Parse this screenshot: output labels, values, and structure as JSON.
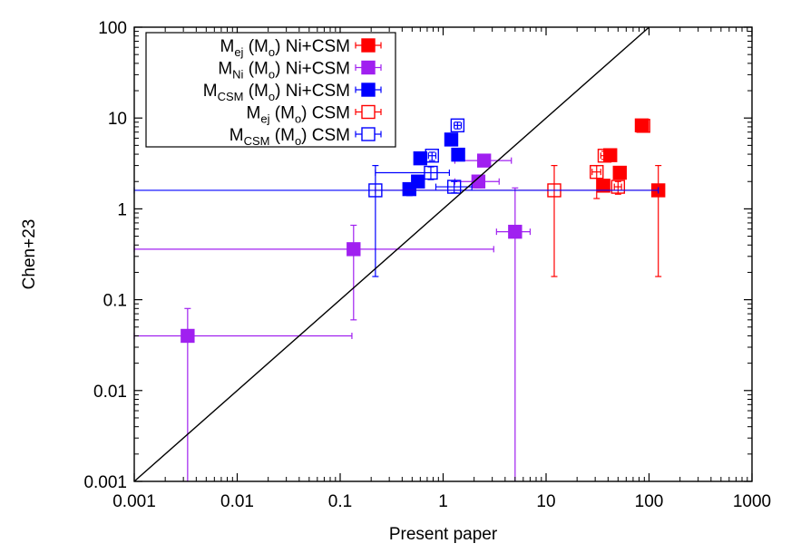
{
  "chart_data": {
    "type": "scatter",
    "title": "",
    "xlabel": "Present paper",
    "ylabel": "Chen+23",
    "x_scale": "log",
    "y_scale": "log",
    "xlim": [
      0.001,
      1000
    ],
    "ylim": [
      0.001,
      100
    ],
    "x_ticks": [
      {
        "value": 0.001,
        "label": "0.001"
      },
      {
        "value": 0.01,
        "label": "0.01"
      },
      {
        "value": 0.1,
        "label": "0.1"
      },
      {
        "value": 1,
        "label": "1"
      },
      {
        "value": 10,
        "label": "10"
      },
      {
        "value": 100,
        "label": "100"
      },
      {
        "value": 1000,
        "label": "1000"
      }
    ],
    "y_ticks": [
      {
        "value": 0.001,
        "label": "0.001"
      },
      {
        "value": 0.01,
        "label": "0.01"
      },
      {
        "value": 0.1,
        "label": "0.1"
      },
      {
        "value": 1,
        "label": "1"
      },
      {
        "value": 10,
        "label": "10"
      },
      {
        "value": 100,
        "label": "100"
      }
    ],
    "grid": false,
    "legend_position": "top-left",
    "reference_line": "y = x",
    "series": [
      {
        "name": "M_ej (M_o) Ni+CSM",
        "legend": {
          "main": "M",
          "sub": "ej",
          "rest": " (M",
          "sub2": "o",
          "tail": ") Ni+CSM"
        },
        "color": "#ff0000",
        "filled": true,
        "points": [
          {
            "x": 36,
            "y": 1.8,
            "xerr": [
              33,
              39
            ],
            "yerr": [
              1.55,
              2.05
            ]
          },
          {
            "x": 42,
            "y": 3.9,
            "xerr": [
              39,
              46
            ],
            "yerr": [
              3.5,
              4.3
            ]
          },
          {
            "x": 52,
            "y": 2.5,
            "xerr": [
              48,
              56
            ],
            "yerr": [
              2.2,
              2.9
            ]
          },
          {
            "x": 85,
            "y": 8.3,
            "xerr": [
              78,
              92
            ],
            "yerr": [
              7.8,
              8.8
            ]
          },
          {
            "x": 123,
            "y": 1.6,
            "xerr": [
              115,
              130
            ],
            "yerr": [
              0.18,
              3.0
            ]
          }
        ]
      },
      {
        "name": "M_Ni (M_o) Ni+CSM",
        "legend": {
          "main": "M",
          "sub": "Ni",
          "rest": " (M",
          "sub2": "o",
          "tail": ") Ni+CSM"
        },
        "color": "#a020f0",
        "filled": true,
        "points": [
          {
            "x": 0.0033,
            "y": 0.04,
            "xerr": [
              0.001,
              0.13
            ],
            "yerr": [
              0.001,
              0.08
            ]
          },
          {
            "x": 0.135,
            "y": 0.36,
            "xerr": [
              0.001,
              3.1
            ],
            "yerr": [
              0.06,
              0.66
            ]
          },
          {
            "x": 2.2,
            "y": 2.0,
            "xerr": [
              1.3,
              3.5
            ],
            "yerr": [
              1.7,
              2.3
            ]
          },
          {
            "x": 2.5,
            "y": 3.4,
            "xerr": [
              1.3,
              4.6
            ],
            "yerr": [
              3.0,
              3.8
            ]
          },
          {
            "x": 5.0,
            "y": 0.56,
            "xerr": [
              3.3,
              7.0
            ],
            "yerr": [
              0.001,
              1.7
            ]
          }
        ]
      },
      {
        "name": "M_CSM (M_o) Ni+CSM",
        "legend": {
          "main": "M",
          "sub": "CSM",
          "rest": " (M",
          "sub2": "o",
          "tail": ") Ni+CSM"
        },
        "color": "#0000ff",
        "filled": true,
        "points": [
          {
            "x": 0.47,
            "y": 1.65,
            "xerr": [
              0.43,
              0.51
            ],
            "yerr": [
              1.4,
              1.9
            ]
          },
          {
            "x": 0.57,
            "y": 2.0,
            "xerr": [
              0.52,
              0.62
            ],
            "yerr": [
              1.75,
              2.25
            ]
          },
          {
            "x": 0.6,
            "y": 3.6,
            "xerr": [
              0.55,
              0.66
            ],
            "yerr": [
              3.2,
              4.0
            ]
          },
          {
            "x": 1.2,
            "y": 5.8,
            "xerr": [
              1.1,
              1.3
            ],
            "yerr": [
              5.2,
              6.4
            ]
          },
          {
            "x": 1.4,
            "y": 3.95,
            "xerr": [
              1.3,
              1.5
            ],
            "yerr": [
              3.5,
              4.4
            ]
          }
        ]
      },
      {
        "name": "M_ej (M_o) CSM",
        "legend": {
          "main": "M",
          "sub": "ej",
          "rest": " (M",
          "sub2": "o",
          "tail": ") CSM"
        },
        "color": "#ff0000",
        "filled": false,
        "points": [
          {
            "x": 12,
            "y": 1.6,
            "xerr": [
              0.22,
              123
            ],
            "yerr": [
              0.18,
              3.0
            ]
          },
          {
            "x": 31,
            "y": 2.55,
            "xerr": [
              28,
              34
            ],
            "yerr": [
              1.3,
              3.0
            ]
          },
          {
            "x": 37,
            "y": 3.85,
            "xerr": [
              34,
              40
            ],
            "yerr": [
              3.5,
              4.3
            ]
          },
          {
            "x": 50,
            "y": 1.75,
            "xerr": [
              46,
              54
            ],
            "yerr": [
              1.45,
              2.0
            ]
          },
          {
            "x": 88,
            "y": 8.2,
            "xerr": [
              81,
              95
            ],
            "yerr": [
              7.7,
              8.7
            ]
          }
        ]
      },
      {
        "name": "M_CSM (M_o) CSM",
        "legend": {
          "main": "M",
          "sub": "CSM",
          "rest": " (M",
          "sub2": "o",
          "tail": ") CSM"
        },
        "color": "#0000ff",
        "filled": false,
        "points": [
          {
            "x": 0.22,
            "y": 1.6,
            "xerr": [
              0.001,
              123
            ],
            "yerr": [
              0.18,
              3.0
            ]
          },
          {
            "x": 0.76,
            "y": 2.5,
            "xerr": [
              0.22,
              1.15
            ],
            "yerr": [
              2.1,
              2.9
            ]
          },
          {
            "x": 0.78,
            "y": 3.85,
            "xerr": [
              0.72,
              0.85
            ],
            "yerr": [
              3.4,
              4.2
            ]
          },
          {
            "x": 1.28,
            "y": 1.75,
            "xerr": [
              0.85,
              1.9
            ],
            "yerr": [
              1.5,
              2.0
            ]
          },
          {
            "x": 1.38,
            "y": 8.3,
            "xerr": [
              1.28,
              1.5
            ],
            "yerr": [
              7.6,
              9.0
            ]
          }
        ]
      }
    ]
  }
}
